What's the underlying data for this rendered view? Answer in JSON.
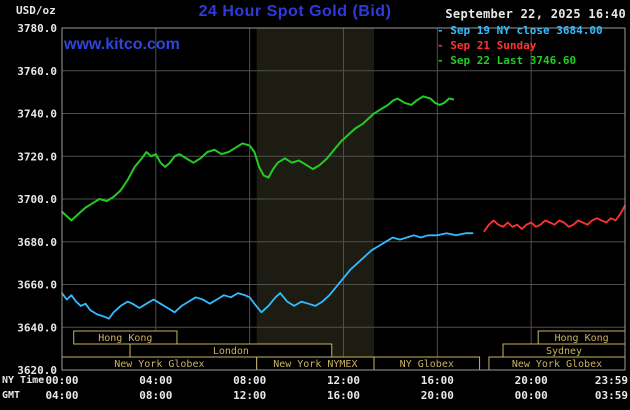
{
  "header": {
    "units_label": "USD/oz",
    "title": "24 Hour Spot Gold (Bid)",
    "datetime": "September 22, 2025 16:40",
    "watermark": "www.kitco.com"
  },
  "legend": {
    "items": [
      {
        "marker": "-",
        "label": "Sep 19 NY close 3684.00",
        "color": "#33bbff"
      },
      {
        "marker": "-",
        "label": "Sep 21 Sunday",
        "color": "#ff3333"
      },
      {
        "marker": "-",
        "label": "Sep 22 Last 3746.60",
        "color": "#22cc22"
      }
    ]
  },
  "axes": {
    "ny_time_label": "NY Time",
    "gmt_label": "GMT",
    "y_ticks": [
      {
        "value": 3780,
        "label": "3780.0"
      },
      {
        "value": 3760,
        "label": "3760.0"
      },
      {
        "value": 3740,
        "label": "3740.0"
      },
      {
        "value": 3720,
        "label": "3720.0"
      },
      {
        "value": 3700,
        "label": "3700.0"
      },
      {
        "value": 3680,
        "label": "3680.0"
      },
      {
        "value": 3660,
        "label": "3660.0"
      },
      {
        "value": 3640,
        "label": "3640.0"
      },
      {
        "value": 3620,
        "label": "3620.0"
      }
    ],
    "x_ticks": [
      {
        "hour": 0,
        "ny": "00:00",
        "gmt": "04:00"
      },
      {
        "hour": 4,
        "ny": "04:00",
        "gmt": "08:00"
      },
      {
        "hour": 8,
        "ny": "08:00",
        "gmt": "12:00"
      },
      {
        "hour": 12,
        "ny": "12:00",
        "gmt": "16:00"
      },
      {
        "hour": 16,
        "ny": "16:00",
        "gmt": "20:00"
      },
      {
        "hour": 20,
        "ny": "20:00",
        "gmt": "00:00"
      },
      {
        "hour": 24,
        "ny": "23:59",
        "gmt": "03:59"
      }
    ]
  },
  "chart_data": {
    "type": "line",
    "title": "24 Hour Spot Gold (Bid)",
    "ylabel": "USD/oz",
    "xlabel": "NY Time",
    "ylim": [
      3620,
      3780
    ],
    "xlim_hours": [
      0,
      24
    ],
    "grid": true,
    "legend_position": "top-right",
    "nymex_highlight_band_hours": [
      8.3,
      13.3
    ],
    "series": [
      {
        "name": "Sep 19 NY close 3684.00",
        "color": "#33bbff",
        "width": 1.8,
        "points": [
          [
            0,
            3656
          ],
          [
            0.2,
            3653
          ],
          [
            0.4,
            3655
          ],
          [
            0.6,
            3652
          ],
          [
            0.8,
            3650
          ],
          [
            1.0,
            3651
          ],
          [
            1.2,
            3648
          ],
          [
            1.5,
            3646
          ],
          [
            1.8,
            3645
          ],
          [
            2.0,
            3644
          ],
          [
            2.2,
            3647
          ],
          [
            2.5,
            3650
          ],
          [
            2.8,
            3652
          ],
          [
            3.0,
            3651
          ],
          [
            3.3,
            3649
          ],
          [
            3.6,
            3651
          ],
          [
            3.9,
            3653
          ],
          [
            4.2,
            3651
          ],
          [
            4.5,
            3649
          ],
          [
            4.8,
            3647
          ],
          [
            5.1,
            3650
          ],
          [
            5.4,
            3652
          ],
          [
            5.7,
            3654
          ],
          [
            6.0,
            3653
          ],
          [
            6.3,
            3651
          ],
          [
            6.6,
            3653
          ],
          [
            6.9,
            3655
          ],
          [
            7.2,
            3654
          ],
          [
            7.5,
            3656
          ],
          [
            7.8,
            3655
          ],
          [
            8.0,
            3654
          ],
          [
            8.2,
            3651
          ],
          [
            8.5,
            3647
          ],
          [
            8.8,
            3650
          ],
          [
            9.1,
            3654
          ],
          [
            9.3,
            3656
          ],
          [
            9.6,
            3652
          ],
          [
            9.9,
            3650
          ],
          [
            10.2,
            3652
          ],
          [
            10.5,
            3651
          ],
          [
            10.8,
            3650
          ],
          [
            11.1,
            3652
          ],
          [
            11.4,
            3655
          ],
          [
            11.7,
            3659
          ],
          [
            12.0,
            3663
          ],
          [
            12.3,
            3667
          ],
          [
            12.6,
            3670
          ],
          [
            12.9,
            3673
          ],
          [
            13.2,
            3676
          ],
          [
            13.5,
            3678
          ],
          [
            13.8,
            3680
          ],
          [
            14.1,
            3682
          ],
          [
            14.4,
            3681
          ],
          [
            14.7,
            3682
          ],
          [
            15.0,
            3683
          ],
          [
            15.3,
            3682
          ],
          [
            15.6,
            3683
          ],
          [
            16.0,
            3683
          ],
          [
            16.4,
            3684
          ],
          [
            16.8,
            3683
          ],
          [
            17.2,
            3684
          ],
          [
            17.5,
            3684
          ]
        ]
      },
      {
        "name": "Sep 21 Sunday",
        "color": "#ff3333",
        "width": 1.8,
        "points": [
          [
            18.0,
            3685
          ],
          [
            18.2,
            3688
          ],
          [
            18.4,
            3690
          ],
          [
            18.6,
            3688
          ],
          [
            18.8,
            3687
          ],
          [
            19.0,
            3689
          ],
          [
            19.2,
            3687
          ],
          [
            19.4,
            3688
          ],
          [
            19.6,
            3686
          ],
          [
            19.8,
            3688
          ],
          [
            20.0,
            3689
          ],
          [
            20.2,
            3687
          ],
          [
            20.4,
            3688
          ],
          [
            20.6,
            3690
          ],
          [
            20.8,
            3689
          ],
          [
            21.0,
            3688
          ],
          [
            21.2,
            3690
          ],
          [
            21.4,
            3689
          ],
          [
            21.6,
            3687
          ],
          [
            21.8,
            3688
          ],
          [
            22.0,
            3690
          ],
          [
            22.2,
            3689
          ],
          [
            22.4,
            3688
          ],
          [
            22.6,
            3690
          ],
          [
            22.8,
            3691
          ],
          [
            23.0,
            3690
          ],
          [
            23.2,
            3689
          ],
          [
            23.4,
            3691
          ],
          [
            23.6,
            3690
          ],
          [
            23.8,
            3693
          ],
          [
            24.0,
            3697
          ]
        ]
      },
      {
        "name": "Sep 22 Last 3746.60",
        "color": "#22cc22",
        "width": 2,
        "points": [
          [
            0,
            3694
          ],
          [
            0.2,
            3692
          ],
          [
            0.4,
            3690
          ],
          [
            0.6,
            3692
          ],
          [
            0.8,
            3694
          ],
          [
            1.0,
            3696
          ],
          [
            1.3,
            3698
          ],
          [
            1.6,
            3700
          ],
          [
            1.9,
            3699
          ],
          [
            2.2,
            3701
          ],
          [
            2.5,
            3704
          ],
          [
            2.8,
            3709
          ],
          [
            3.1,
            3715
          ],
          [
            3.4,
            3719
          ],
          [
            3.6,
            3722
          ],
          [
            3.8,
            3720
          ],
          [
            4.0,
            3721
          ],
          [
            4.2,
            3717
          ],
          [
            4.4,
            3715
          ],
          [
            4.6,
            3717
          ],
          [
            4.8,
            3720
          ],
          [
            5.0,
            3721
          ],
          [
            5.3,
            3719
          ],
          [
            5.6,
            3717
          ],
          [
            5.9,
            3719
          ],
          [
            6.2,
            3722
          ],
          [
            6.5,
            3723
          ],
          [
            6.8,
            3721
          ],
          [
            7.1,
            3722
          ],
          [
            7.4,
            3724
          ],
          [
            7.7,
            3726
          ],
          [
            8.0,
            3725
          ],
          [
            8.2,
            3722
          ],
          [
            8.4,
            3715
          ],
          [
            8.6,
            3711
          ],
          [
            8.8,
            3710
          ],
          [
            9.0,
            3714
          ],
          [
            9.2,
            3717
          ],
          [
            9.5,
            3719
          ],
          [
            9.8,
            3717
          ],
          [
            10.1,
            3718
          ],
          [
            10.4,
            3716
          ],
          [
            10.7,
            3714
          ],
          [
            11.0,
            3716
          ],
          [
            11.3,
            3719
          ],
          [
            11.6,
            3723
          ],
          [
            11.9,
            3727
          ],
          [
            12.2,
            3730
          ],
          [
            12.5,
            3733
          ],
          [
            12.8,
            3735
          ],
          [
            13.0,
            3737
          ],
          [
            13.3,
            3740
          ],
          [
            13.6,
            3742
          ],
          [
            13.9,
            3744
          ],
          [
            14.1,
            3746
          ],
          [
            14.3,
            3747
          ],
          [
            14.6,
            3745
          ],
          [
            14.9,
            3744
          ],
          [
            15.1,
            3746
          ],
          [
            15.4,
            3748
          ],
          [
            15.7,
            3747
          ],
          [
            15.9,
            3745
          ],
          [
            16.1,
            3744
          ],
          [
            16.3,
            3745
          ],
          [
            16.5,
            3747
          ],
          [
            16.67,
            3746.6
          ]
        ]
      }
    ]
  },
  "sessions": {
    "rows": [
      [
        {
          "label": "Hong Kong",
          "start": 0.5,
          "end": 4.9
        },
        {
          "label": "Hong Kong",
          "start": 20.3,
          "end": 24
        }
      ],
      [
        {
          "label": "London",
          "start": 2.9,
          "end": 11.5
        },
        {
          "label": "Sydney",
          "start": 18.8,
          "end": 24
        }
      ],
      [
        {
          "label": "New York Globex",
          "start": 0,
          "end": 8.3
        },
        {
          "label": "New York NYMEX",
          "start": 8.3,
          "end": 13.3
        },
        {
          "label": "NY Globex",
          "start": 13.3,
          "end": 17.8
        },
        {
          "label": "New York Globex",
          "start": 18.2,
          "end": 24
        }
      ]
    ]
  },
  "colors": {
    "background": "#000000",
    "title": "#2e3bdb",
    "watermark": "#2e46db",
    "axis_text": "#e8e8e8",
    "date_text": "#e8e8e8",
    "grid": "#4f4f4f",
    "plot_border": "#9a9a9a",
    "session": "#c9b264",
    "band": "#1c1c12"
  }
}
